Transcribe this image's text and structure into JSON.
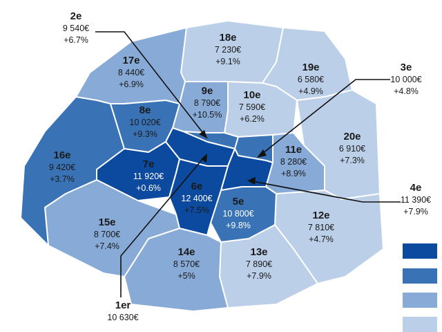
{
  "palette": {
    "darkest": "#0b4a9e",
    "dark": "#3a73b5",
    "medium": "#87aad6",
    "light": "#bccfe8",
    "border": "#ffffff",
    "text": "#1a1a1a"
  },
  "arrondissements": [
    {
      "id": "1er",
      "name": "1er",
      "price": "10 630€",
      "change": "",
      "tier": "darkest"
    },
    {
      "id": "2e",
      "name": "2e",
      "price": "9 540€",
      "change": "+6.7%",
      "tier": "dark"
    },
    {
      "id": "3e",
      "name": "3e",
      "price": "10 000€",
      "change": "+4.8%",
      "tier": "dark"
    },
    {
      "id": "4e",
      "name": "4e",
      "price": "11 390€",
      "change": "+7.9%",
      "tier": "darkest"
    },
    {
      "id": "5e",
      "name": "5e",
      "price": "10 800€",
      "change": "+9.8%",
      "tier": "dark"
    },
    {
      "id": "6e",
      "name": "6e",
      "price": "12 400€",
      "change": "+7.5%",
      "tier": "darkest"
    },
    {
      "id": "7e",
      "name": "7e",
      "price": "11 920€",
      "change": "+0.6%",
      "tier": "darkest"
    },
    {
      "id": "8e",
      "name": "8e",
      "price": "10 020€",
      "change": "+9.3%",
      "tier": "dark"
    },
    {
      "id": "9e",
      "name": "9e",
      "price": "8 790€",
      "change": "+10.5%",
      "tier": "medium"
    },
    {
      "id": "10e",
      "name": "10e",
      "price": "7 590€",
      "change": "+6.2%",
      "tier": "light"
    },
    {
      "id": "11e",
      "name": "11e",
      "price": "8 280€",
      "change": "+8.9%",
      "tier": "medium"
    },
    {
      "id": "12e",
      "name": "12e",
      "price": "7 810€",
      "change": "+4.7%",
      "tier": "light"
    },
    {
      "id": "13e",
      "name": "13e",
      "price": "7 890€",
      "change": "+7.9%",
      "tier": "light"
    },
    {
      "id": "14e",
      "name": "14e",
      "price": "8 570€",
      "change": "+5%",
      "tier": "medium"
    },
    {
      "id": "15e",
      "name": "15e",
      "price": "8 700€",
      "change": "+7.4%",
      "tier": "medium"
    },
    {
      "id": "16e",
      "name": "16e",
      "price": "9 420€",
      "change": "+3.7%",
      "tier": "dark"
    },
    {
      "id": "17e",
      "name": "17e",
      "price": "8 440€",
      "change": "+6.9%",
      "tier": "medium"
    },
    {
      "id": "18e",
      "name": "18e",
      "price": "7 230€",
      "change": "+9.1%",
      "tier": "light"
    },
    {
      "id": "19e",
      "name": "19e",
      "price": "6 580€",
      "change": "+4.9%",
      "tier": "light"
    },
    {
      "id": "20e",
      "name": "20e",
      "price": "6 910€",
      "change": "+7.3%",
      "tier": "light"
    }
  ],
  "legend": [
    {
      "tier": "darkest"
    },
    {
      "tier": "dark"
    },
    {
      "tier": "medium"
    },
    {
      "tier": "light"
    }
  ]
}
